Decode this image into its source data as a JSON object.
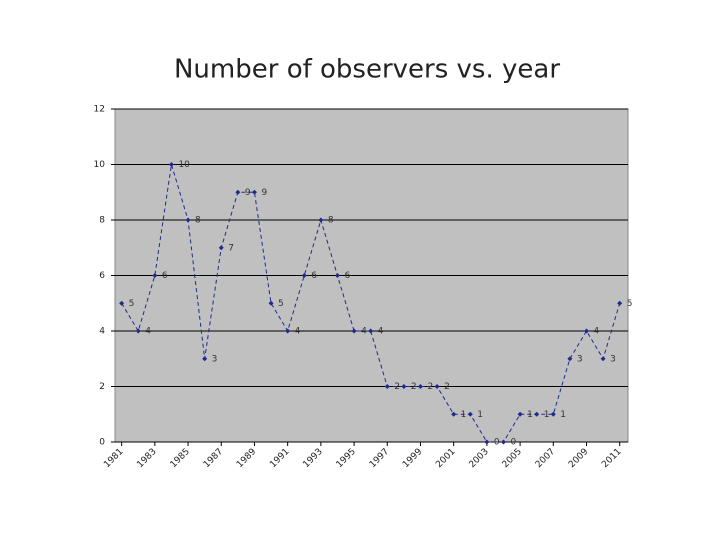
{
  "chart_data": {
    "type": "line",
    "title": "Number of observers vs. year",
    "x": [
      1981,
      1982,
      1983,
      1984,
      1985,
      1986,
      1987,
      1988,
      1989,
      1990,
      1991,
      1992,
      1993,
      1994,
      1995,
      1996,
      1997,
      1998,
      1999,
      2000,
      2001,
      2002,
      2003,
      2004,
      2005,
      2006,
      2007,
      2008,
      2009,
      2010,
      2011
    ],
    "series": [
      {
        "name": "Observers",
        "color": "#1f2a8c",
        "values": [
          5,
          4,
          6,
          10,
          8,
          3,
          7,
          9,
          9,
          5,
          4,
          6,
          8,
          6,
          4,
          4,
          2,
          2,
          2,
          2,
          1,
          1,
          0,
          0,
          1,
          1,
          1,
          3,
          4,
          3,
          5
        ]
      }
    ],
    "xlim": [
      1980.6,
      2011.5
    ],
    "xticks": [
      1981,
      1983,
      1985,
      1987,
      1989,
      1991,
      1993,
      1995,
      1997,
      1999,
      2001,
      2003,
      2005,
      2007,
      2009,
      2011
    ],
    "ylim": [
      0,
      12
    ],
    "yticks": [
      0,
      2,
      4,
      6,
      8,
      10,
      12
    ],
    "grid": true,
    "plot_background": "#c0c0c0"
  }
}
